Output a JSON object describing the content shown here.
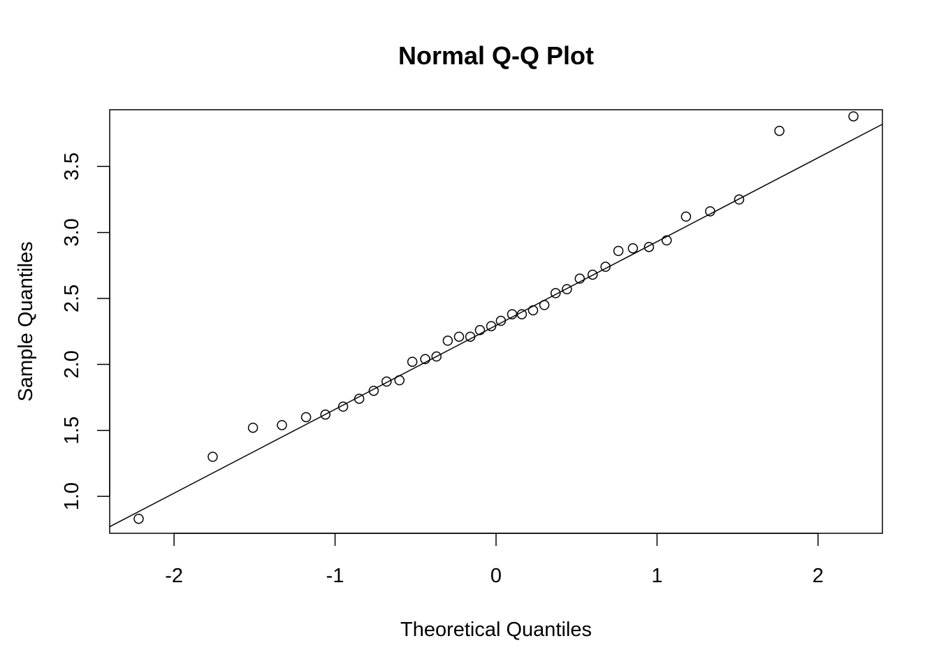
{
  "chart_data": {
    "type": "scatter",
    "title": "Normal Q-Q Plot",
    "xlabel": "Theoretical Quantiles",
    "ylabel": "Sample Quantiles",
    "xlim": [
      -2.4,
      2.4
    ],
    "ylim": [
      0.72,
      3.93
    ],
    "x_ticks": [
      -2,
      -1,
      0,
      1,
      2
    ],
    "x_tick_labels": [
      "-2",
      "-1",
      "0",
      "1",
      "2"
    ],
    "y_ticks": [
      1.0,
      1.5,
      2.0,
      2.5,
      3.0,
      3.5
    ],
    "y_tick_labels": [
      "1.0",
      "1.5",
      "2.0",
      "2.5",
      "3.0",
      "3.5"
    ],
    "grid": false,
    "point_style": "open-circle",
    "reference_line": {
      "x": [
        -2.4,
        2.4
      ],
      "y": [
        0.77,
        3.82
      ]
    },
    "points": {
      "x": [
        -2.22,
        -1.76,
        -1.51,
        -1.33,
        -1.18,
        -1.06,
        -0.95,
        -0.85,
        -0.76,
        -0.68,
        -0.6,
        -0.52,
        -0.44,
        -0.37,
        -0.3,
        -0.23,
        -0.16,
        -0.1,
        -0.03,
        0.03,
        0.1,
        0.16,
        0.23,
        0.3,
        0.37,
        0.44,
        0.52,
        0.6,
        0.68,
        0.76,
        0.85,
        0.95,
        1.06,
        1.18,
        1.33,
        1.51,
        1.76,
        2.22
      ],
      "y": [
        0.83,
        1.3,
        1.52,
        1.54,
        1.6,
        1.62,
        1.68,
        1.74,
        1.8,
        1.87,
        1.88,
        2.02,
        2.04,
        2.06,
        2.18,
        2.21,
        2.21,
        2.26,
        2.29,
        2.33,
        2.38,
        2.38,
        2.41,
        2.45,
        2.54,
        2.57,
        2.65,
        2.68,
        2.74,
        2.86,
        2.88,
        2.89,
        2.94,
        3.12,
        3.16,
        3.25,
        3.77,
        3.88
      ]
    }
  }
}
